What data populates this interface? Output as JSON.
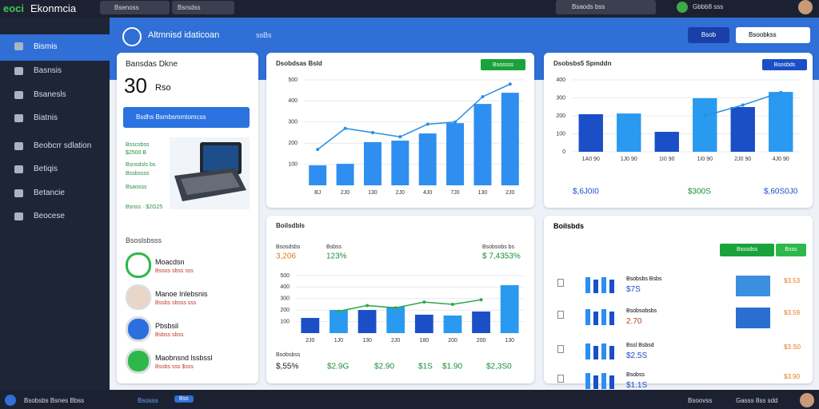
{
  "header": {
    "logo": "eoci",
    "brand": "Ekonmcia",
    "tabs": [
      "Bsenoss",
      "Bsrsdss"
    ],
    "search": "Bsaods bss",
    "user": "Gbbb8 sss"
  },
  "sidebar": {
    "items": [
      "Bismis",
      "Basnsis",
      "Bsanesls",
      "Biatnis",
      "Beobcrr sdlation",
      "Betiqis",
      "Betancie",
      "Beocese"
    ]
  },
  "topbar": {
    "title": "Altmnisd idaticoan",
    "tag": "ssBs",
    "button": "Bsob",
    "select": "Bsoobkss"
  },
  "summary": {
    "title": "Bansdas Dkne",
    "value": "30",
    "unit": "Rso",
    "button": "Bsdhs Bsmbsmmtomcss",
    "notes": [
      "Bsscsbss",
      "$2500 B",
      "Bsnsdsls bs",
      "Bssbssss",
      "Bsaosss",
      "Bsnss · $2G25"
    ],
    "section": "Bsoslsbsss",
    "people": [
      {
        "name": "Moacdsn",
        "detail": "Bssos sbss sss"
      },
      {
        "name": "Manoe Inlebsnis",
        "detail": "Bssbs sbsss sss"
      },
      {
        "name": "Pbsbsil",
        "detail": "Bsbss sbss"
      },
      {
        "name": "Maobnsnd lssbssl",
        "detail": "Bssbs sss $sss"
      }
    ]
  },
  "charts": [
    {
      "title": "Dsobdsas Bsld",
      "button": "Bsossss",
      "categories": [
        "BJ",
        "2J0",
        "130",
        "2J0",
        "4J0",
        "7J0",
        "130",
        "2J0"
      ],
      "values": [
        95,
        102,
        205,
        212,
        246,
        295,
        386,
        439
      ],
      "line": [
        170,
        270,
        250,
        230,
        290,
        300,
        420,
        480
      ],
      "ylim": [
        0,
        500
      ],
      "yticks": [
        100,
        200,
        300,
        400,
        500
      ]
    },
    {
      "title": "Dsobsbs5 Spmddn",
      "button": "Bsosbds",
      "categories": [
        "1A0 90",
        "1J0 90",
        "1I0 90",
        "1I0 90",
        "2J0 90",
        "4J0 90"
      ],
      "values": [
        209,
        213,
        111,
        298,
        249,
        333
      ],
      "line": [
        null,
        null,
        null,
        200,
        260,
        330
      ],
      "ylim": [
        0,
        400
      ],
      "yticks": [
        0,
        100,
        200,
        300,
        400
      ],
      "stats": [
        "$,6J0I0",
        "$300S",
        "$,60S0J0"
      ]
    },
    {
      "title": "Boilsdbls",
      "categories": [
        "2J0",
        "1J0",
        "130",
        "2J0",
        "180",
        "200",
        "200",
        "130"
      ],
      "values": [
        132,
        201,
        201,
        229,
        160,
        153,
        188,
        417
      ],
      "line": [
        null,
        190,
        240,
        220,
        270,
        250,
        290,
        null
      ],
      "ylim": [
        0,
        500
      ],
      "yticks": [
        100,
        200,
        300,
        400,
        500
      ],
      "top_stats": [
        {
          "label": "Bsosdsbs",
          "value": "3,206"
        },
        {
          "label": "Bsbss",
          "value": "123%"
        },
        {
          "label": "Bsobsobs bs",
          "value": "$ 7,4353%"
        }
      ],
      "bottom_label": "Bsobsbss",
      "bottom_stats": [
        "$,55%",
        "$2.9G",
        "$2.90",
        "$1S",
        "$1.90",
        "$2,3S0"
      ]
    }
  ],
  "list": {
    "title": "Boilsbds",
    "buttons": [
      "Bsssdss",
      "Bsss"
    ],
    "rows": [
      {
        "name": "Bsobsbs Bsbs",
        "value": "$7S",
        "right": "$3.53"
      },
      {
        "name": "Bsobsobsbs",
        "value": "2.70",
        "right": "$3.59"
      },
      {
        "name": "Bssl Bsbsd",
        "value": "$2.5S",
        "right": "$3.S0"
      },
      {
        "name": "Bsobss",
        "value": "$1.1S",
        "right": "$3.90"
      }
    ]
  },
  "footer": {
    "left": "Bsobsbs Bsnes Bbss",
    "link": "Bsosss",
    "badge": "Bss",
    "right": "Bsoovss",
    "user": "Gasss 8ss sdd"
  }
}
